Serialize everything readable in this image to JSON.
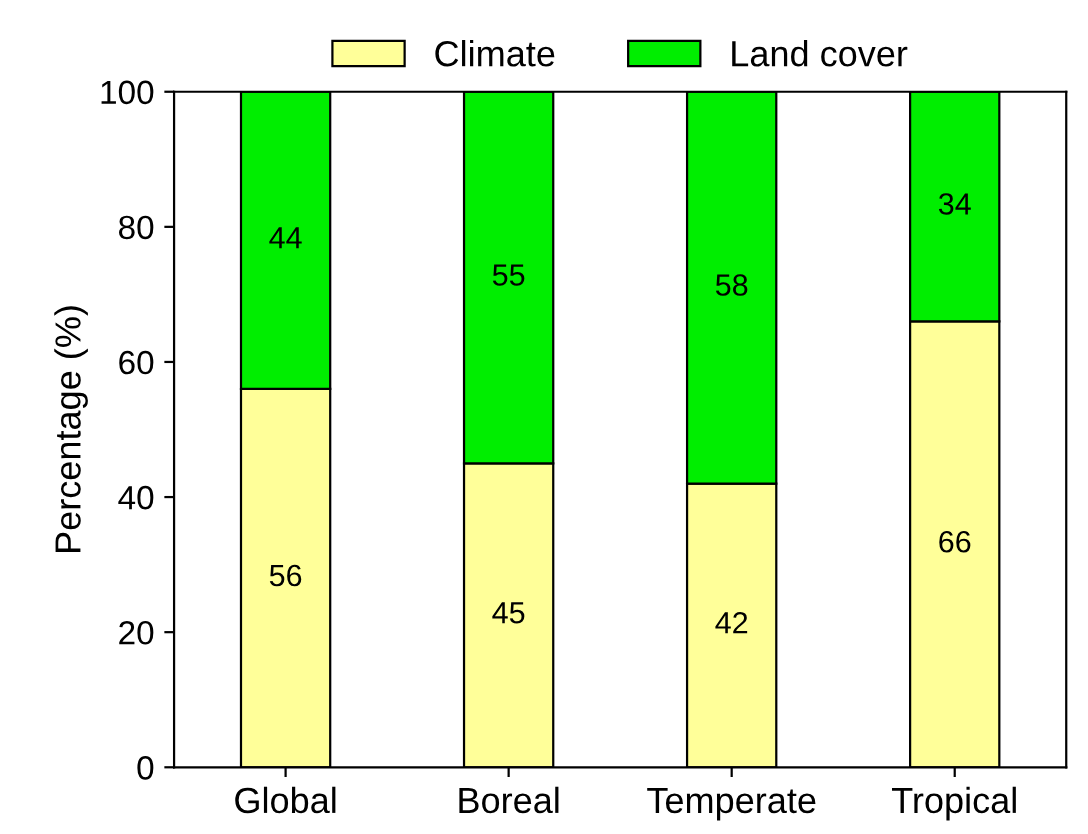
{
  "chart_data": {
    "type": "bar",
    "ylabel": "Percentage (%)",
    "categories": [
      "Global",
      "Boreal",
      "Temperate",
      "Tropical"
    ],
    "series": [
      {
        "name": "Climate",
        "color": "#ffff99",
        "values": [
          56,
          45,
          42,
          66
        ]
      },
      {
        "name": "Land cover",
        "color": "#00ee00",
        "values": [
          44,
          55,
          58,
          34
        ]
      }
    ],
    "stacked": true,
    "data_labels": true,
    "ylim": [
      0,
      100
    ],
    "yticks": [
      0,
      20,
      40,
      60,
      80,
      100
    ],
    "grid": false,
    "legend": "top"
  }
}
